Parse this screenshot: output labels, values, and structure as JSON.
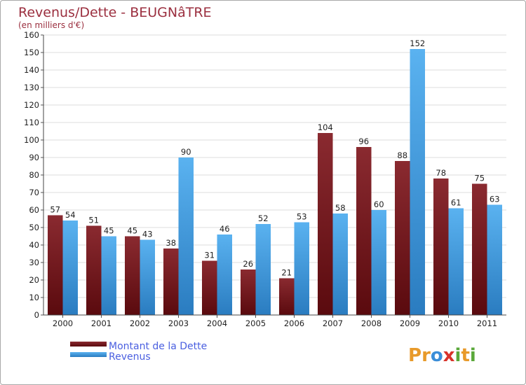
{
  "chart_data": {
    "type": "bar",
    "title": "Revenus/Dette - BEUGNâTRE",
    "subtitle": "(en milliers d'€)",
    "categories": [
      "2000",
      "2001",
      "2002",
      "2003",
      "2004",
      "2005",
      "2006",
      "2007",
      "2008",
      "2009",
      "2010",
      "2011"
    ],
    "series": [
      {
        "name": "Montant de la Dette",
        "color": "#7a1a1e",
        "values": [
          57,
          51,
          45,
          38,
          31,
          26,
          21,
          104,
          96,
          88,
          78,
          75
        ]
      },
      {
        "name": "Revenus",
        "color": "#4aa3e8",
        "values": [
          54,
          45,
          43,
          90,
          46,
          52,
          53,
          58,
          60,
          152,
          61,
          63
        ]
      }
    ],
    "ylim": [
      0,
      160
    ],
    "yticks": [
      0,
      10,
      20,
      30,
      40,
      50,
      60,
      70,
      80,
      90,
      100,
      110,
      120,
      130,
      140,
      150,
      160
    ],
    "legend_position": "bottom-left"
  },
  "logo": {
    "text": "Proxiti",
    "letters": [
      "P",
      "r",
      "o",
      "x",
      "i",
      "t",
      "i"
    ],
    "colors": [
      "#e89a2a",
      "#e89a2a",
      "#3b8ed8",
      "#d8322a",
      "#5aa83a",
      "#e89a2a",
      "#5aa83a"
    ]
  }
}
